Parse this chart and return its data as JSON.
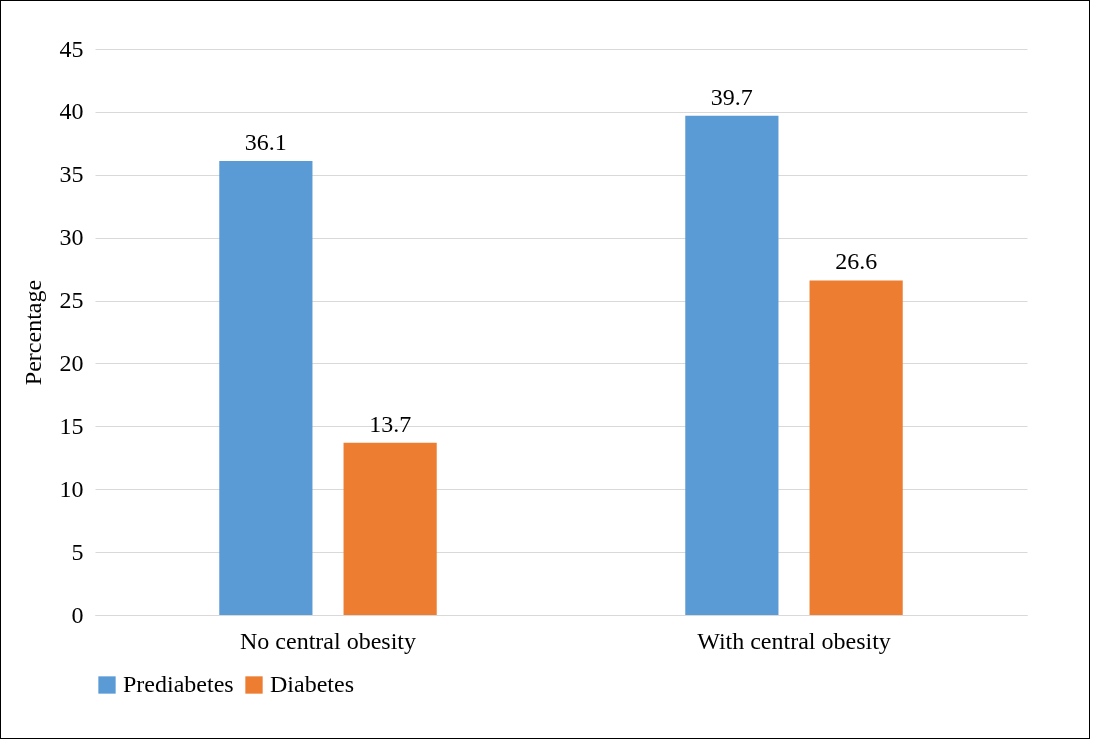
{
  "chart_data": {
    "type": "bar",
    "ylabel": "Percentage",
    "categories": [
      "No central obesity",
      "With central obesity"
    ],
    "series": [
      {
        "name": "Prediabetes",
        "color": "#5b9bd5",
        "values": [
          36.1,
          39.7
        ]
      },
      {
        "name": "Diabetes",
        "color": "#ed7d31",
        "values": [
          13.7,
          26.6
        ]
      }
    ],
    "ylim": [
      0,
      45
    ],
    "yticks": [
      0,
      5,
      10,
      15,
      20,
      25,
      30,
      35,
      40,
      45
    ],
    "grid": "y",
    "legend": "bottom",
    "data_labels": true
  }
}
